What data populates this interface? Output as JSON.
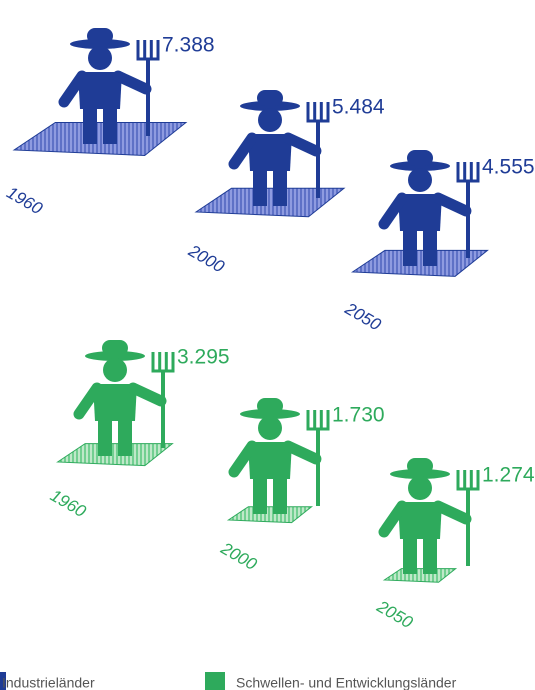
{
  "chart_data": {
    "type": "pictograph",
    "categories": [
      "1960",
      "2000",
      "2050"
    ],
    "series": [
      {
        "name": "Industrieländer",
        "color": "#1f3c96",
        "values": [
          7388,
          5484,
          4555
        ],
        "value_labels": [
          "7.388",
          "5.484",
          "4.555"
        ]
      },
      {
        "name": "Schwellen- und Entwicklungsländer",
        "color": "#2eaa5c",
        "values": [
          3295,
          1730,
          1274
        ],
        "value_labels": [
          "3.295",
          "1.730",
          "1.274"
        ]
      }
    ]
  }
}
